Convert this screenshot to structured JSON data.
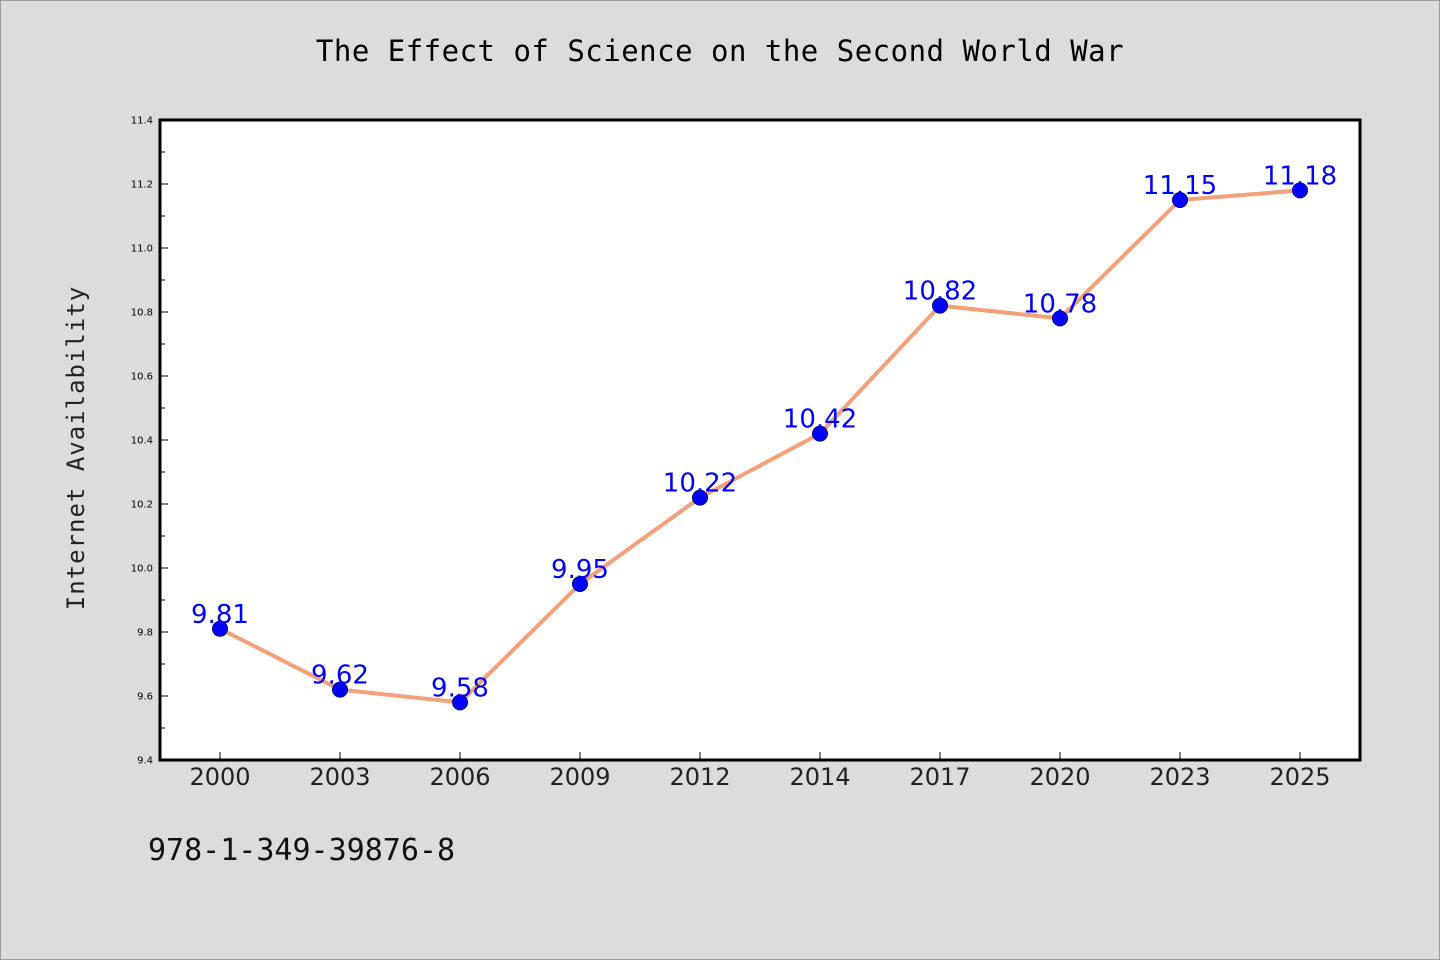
{
  "footer": {
    "code": "978-1-349-39876-8"
  },
  "chart_data": {
    "type": "line",
    "title": "The Effect of Science on the Second World War",
    "xlabel": "",
    "ylabel": "Internet Availability",
    "categories": [
      "2000",
      "2003",
      "2006",
      "2009",
      "2012",
      "2014",
      "2017",
      "2020",
      "2023",
      "2025"
    ],
    "series": [
      {
        "values": [
          9.81,
          9.62,
          9.58,
          9.95,
          10.22,
          10.42,
          10.82,
          10.78,
          11.15,
          11.18
        ]
      }
    ],
    "data_labels": [
      "9.81",
      "9.62",
      "9.58",
      "9.95",
      "10.22",
      "10.42",
      "10.82",
      "10.78",
      "11.15",
      "11.18"
    ],
    "ylim": [
      9.4,
      11.4
    ],
    "yticks": [
      "9.4",
      "9.6",
      "9.8",
      "10.0",
      "10.2",
      "10.4",
      "10.6",
      "10.8",
      "11.0",
      "11.2",
      "11.4"
    ],
    "grid": false,
    "legend": "none",
    "colors": {
      "line": "#f4a07a",
      "marker_fill": "#0000ff",
      "marker_edge": "#000080",
      "label": "#0000ff",
      "plot_background": "#ffffff",
      "figure_background": "#dcdcdc"
    }
  }
}
